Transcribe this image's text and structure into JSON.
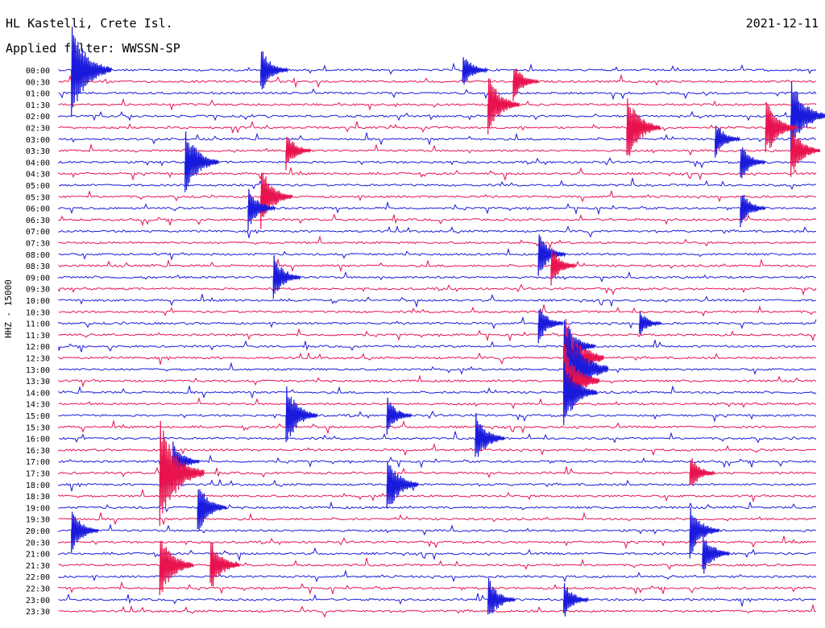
{
  "header": {
    "station": "HL Kastelli, Crete Isl.",
    "filter": "Applied filter: WWSSN-SP",
    "date": "2021-12-11",
    "stream_label": "HHZ - 15000"
  },
  "colors": {
    "blue": "#1a1adc",
    "red": "#e8134e"
  },
  "chart_data": {
    "type": "line",
    "title": "HL Kastelli, Crete Isl.",
    "subtitle": "Applied filter: WWSSN-SP",
    "ylabel": "HHZ - 15000",
    "row_labels": [
      "00:00",
      "00:30",
      "01:00",
      "01:30",
      "02:00",
      "02:30",
      "03:00",
      "03:30",
      "04:00",
      "04:30",
      "05:00",
      "05:30",
      "06:00",
      "06:30",
      "07:00",
      "07:30",
      "08:00",
      "08:30",
      "09:00",
      "09:30",
      "10:00",
      "10:30",
      "11:00",
      "11:30",
      "12:00",
      "12:30",
      "13:00",
      "13:30",
      "14:00",
      "14:30",
      "15:00",
      "15:30",
      "16:00",
      "16:30",
      "17:00",
      "17:30",
      "18:00",
      "18:30",
      "19:00",
      "19:30",
      "20:00",
      "20:30",
      "21:00",
      "21:30",
      "22:00",
      "22:30",
      "23:00",
      "23:30"
    ],
    "row_colors": [
      "blue",
      "red"
    ],
    "events": [
      {
        "row": 0,
        "minute": 0.5,
        "amp": 60
      },
      {
        "row": 0,
        "minute": 8,
        "amp": 30
      },
      {
        "row": 0,
        "minute": 16,
        "amp": 25
      },
      {
        "row": 1,
        "minute": 18,
        "amp": 25
      },
      {
        "row": 3,
        "minute": 17,
        "amp": 40
      },
      {
        "row": 4,
        "minute": 29,
        "amp": 50
      },
      {
        "row": 5,
        "minute": 22.5,
        "amp": 45
      },
      {
        "row": 5,
        "minute": 28,
        "amp": 40
      },
      {
        "row": 6,
        "minute": 26,
        "amp": 25
      },
      {
        "row": 7,
        "minute": 9,
        "amp": 25
      },
      {
        "row": 7,
        "minute": 29,
        "amp": 35
      },
      {
        "row": 8,
        "minute": 5,
        "amp": 45
      },
      {
        "row": 8,
        "minute": 27,
        "amp": 25
      },
      {
        "row": 11,
        "minute": 8,
        "amp": 40
      },
      {
        "row": 12,
        "minute": 7.5,
        "amp": 30
      },
      {
        "row": 12,
        "minute": 27,
        "amp": 25
      },
      {
        "row": 16,
        "minute": 19,
        "amp": 30
      },
      {
        "row": 17,
        "minute": 19.5,
        "amp": 25
      },
      {
        "row": 18,
        "minute": 8.5,
        "amp": 30
      },
      {
        "row": 22,
        "minute": 23,
        "amp": 18
      },
      {
        "row": 22,
        "minute": 19,
        "amp": 25
      },
      {
        "row": 24,
        "minute": 20,
        "amp": 40
      },
      {
        "row": 25,
        "minute": 20,
        "amp": 60
      },
      {
        "row": 26,
        "minute": 20,
        "amp": 70
      },
      {
        "row": 27,
        "minute": 20,
        "amp": 50
      },
      {
        "row": 28,
        "minute": 20,
        "amp": 45
      },
      {
        "row": 30,
        "minute": 9,
        "amp": 40
      },
      {
        "row": 30,
        "minute": 13,
        "amp": 25
      },
      {
        "row": 32,
        "minute": 16.5,
        "amp": 35
      },
      {
        "row": 34,
        "minute": 4.5,
        "amp": 30
      },
      {
        "row": 35,
        "minute": 4,
        "amp": 70
      },
      {
        "row": 35,
        "minute": 25,
        "amp": 25
      },
      {
        "row": 36,
        "minute": 13,
        "amp": 40
      },
      {
        "row": 38,
        "minute": 5.5,
        "amp": 35
      },
      {
        "row": 40,
        "minute": 0.5,
        "amp": 30
      },
      {
        "row": 40,
        "minute": 25,
        "amp": 35
      },
      {
        "row": 42,
        "minute": 25.5,
        "amp": 30
      },
      {
        "row": 43,
        "minute": 4,
        "amp": 45
      },
      {
        "row": 43,
        "minute": 6,
        "amp": 35
      },
      {
        "row": 46,
        "minute": 17,
        "amp": 30
      },
      {
        "row": 46,
        "minute": 20,
        "amp": 25
      }
    ],
    "xlim": [
      0,
      30
    ],
    "grid": false
  }
}
